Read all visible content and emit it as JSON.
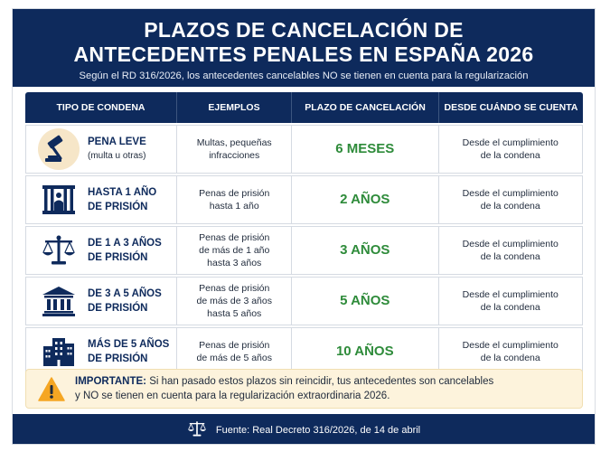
{
  "header": {
    "title_line1": "PLAZOS DE CANCELACIÓN DE",
    "title_line2": "ANTECEDENTES PENALES EN ESPAÑA 2026",
    "subtitle": "Según el RD 316/2026, los antecedentes cancelables NO se tienen en cuenta para la regularización"
  },
  "table": {
    "columns": [
      "TIPO DE CONDENA",
      "EJEMPLOS",
      "PLAZO DE CANCELACIÓN",
      "DESDE CUÁNDO SE CUENTA"
    ],
    "rows": [
      {
        "icon": "gavel-icon",
        "type_line1": "PENA LEVE",
        "type_line2": "(multa u otras)",
        "examples": [
          "Multas, pequeñas",
          "infracciones"
        ],
        "period": "6 MESES",
        "since": [
          "Desde el cumplimiento",
          "de la condena"
        ]
      },
      {
        "icon": "prison-bars-icon",
        "type_line1": "HASTA 1 AÑO",
        "type_line2": "DE PRISIÓN",
        "examples": [
          "Penas de prisión",
          "hasta 1 año"
        ],
        "period": "2 AÑOS",
        "since": [
          "Desde el cumplimiento",
          "de la condena"
        ]
      },
      {
        "icon": "scales-icon",
        "type_line1": "DE 1 A 3 AÑOS",
        "type_line2": "DE PRISIÓN",
        "examples": [
          "Penas de prisión",
          "de más de 1 año",
          "hasta 3 años"
        ],
        "period": "3 AÑOS",
        "since": [
          "Desde el cumplimiento",
          "de la condena"
        ]
      },
      {
        "icon": "courthouse-icon",
        "type_line1": "DE 3 A 5 AÑOS",
        "type_line2": "DE PRISIÓN",
        "examples": [
          "Penas de prisión",
          "de más de 3 años",
          "hasta 5 años"
        ],
        "period": "5 AÑOS",
        "since": [
          "Desde el cumplimiento",
          "de la condena"
        ]
      },
      {
        "icon": "buildings-icon",
        "type_line1": "MÁS DE 5 AÑOS",
        "type_line2": "DE PRISIÓN",
        "examples": [
          "Penas de prisión",
          "de más de 5 años"
        ],
        "period": "10 AÑOS",
        "since": [
          "Desde el cumplimiento",
          "de la condena"
        ]
      }
    ]
  },
  "notice": {
    "icon": "warning-icon",
    "label": "IMPORTANTE:",
    "line1": " Si han pasado estos plazos sin reincidir, tus antecedentes son cancelables",
    "line2": "y NO se tienen en cuenta para la regularización extraordinaria 2026."
  },
  "footer": {
    "icon": "scales-icon",
    "text": "Fuente: Real Decreto 316/2026, de 14 de abril"
  },
  "colors": {
    "navy": "#0e2a5c",
    "green": "#2e8b3a",
    "notice_bg": "#fdf3dc",
    "warning": "#f5a623"
  }
}
